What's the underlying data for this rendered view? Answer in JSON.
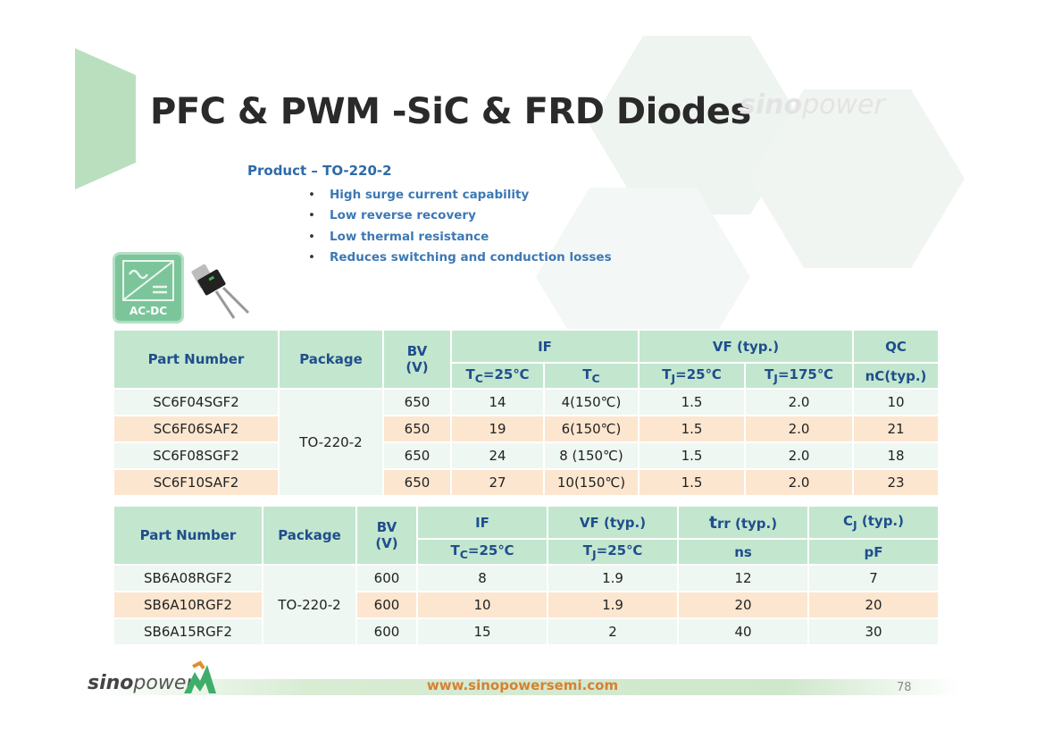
{
  "title": "PFC & PWM -SiC & FRD Diodes",
  "watermark": {
    "bold": "sino",
    "light": "power"
  },
  "product": "Product – TO-220-2",
  "features": [
    "High surge current capability",
    "Low reverse recovery",
    "Low thermal resistance",
    "Reduces switching and conduction losses"
  ],
  "acdc_label": "AC-DC",
  "table1": {
    "headers": {
      "part_number": "Part Number",
      "package": "Package",
      "bv": "BV",
      "bv_unit": "(V)",
      "if": "IF",
      "vf": "VF (typ.)",
      "qc": "QC",
      "if_sub1": "=25℃",
      "if_sub2": "",
      "vf_sub1": "=25℃",
      "vf_sub2": "=175℃",
      "qc_sub": "nC(typ.)",
      "t": "T",
      "sub_c": "C",
      "sub_j": "J"
    },
    "package_value": "TO-220-2",
    "rows": [
      {
        "part": "SC6F04SGF2",
        "bv": "650",
        "if25": "14",
        "ifhot": "4(150℃)",
        "vf25": "1.5",
        "vf175": "2.0",
        "qc": "10"
      },
      {
        "part": "SC6F06SAF2",
        "bv": "650",
        "if25": "19",
        "ifhot": "6(150℃)",
        "vf25": "1.5",
        "vf175": "2.0",
        "qc": "21"
      },
      {
        "part": "SC6F08SGF2",
        "bv": "650",
        "if25": "24",
        "ifhot": "8 (150℃)",
        "vf25": "1.5",
        "vf175": "2.0",
        "qc": "18"
      },
      {
        "part": "SC6F10SAF2",
        "bv": "650",
        "if25": "27",
        "ifhot": "10(150℃)",
        "vf25": "1.5",
        "vf175": "2.0",
        "qc": "23"
      }
    ]
  },
  "table2": {
    "headers": {
      "part_number": "Part Number",
      "package": "Package",
      "bv": "BV",
      "bv_unit": "(V)",
      "if": "IF",
      "vf": "VF (typ.)",
      "trr_t": "t",
      "trr_rest": "rr (typ.)",
      "cj_c": "C",
      "cj_sub": "J",
      "cj_rest": " (typ.)",
      "if_sub": "=25℃",
      "vf_sub": "=25℃",
      "trr_unit": "ns",
      "cj_unit": "pF",
      "t": "T",
      "sub_c": "C",
      "sub_j": "J"
    },
    "package_value": "TO-220-2",
    "rows": [
      {
        "part": "SB6A08RGF2",
        "bv": "600",
        "if": "8",
        "vf": "1.9",
        "trr": "12",
        "cj": "7"
      },
      {
        "part": "SB6A10RGF2",
        "bv": "600",
        "if": "10",
        "vf": "1.9",
        "trr": "20",
        "cj": "20"
      },
      {
        "part": "SB6A15RGF2",
        "bv": "600",
        "if": "15",
        "vf": "2",
        "trr": "40",
        "cj": "30"
      }
    ]
  },
  "footer": {
    "logo_bold": "sino",
    "logo_light": "power",
    "website": "www.sinopowersemi.com",
    "page": "78"
  },
  "colors": {
    "header_green": "#c3e6cf",
    "row_light": "#eef7f1",
    "row_peach": "#fde6cf",
    "accent_blue": "#2e6aa8",
    "website_orange": "#d98030"
  }
}
